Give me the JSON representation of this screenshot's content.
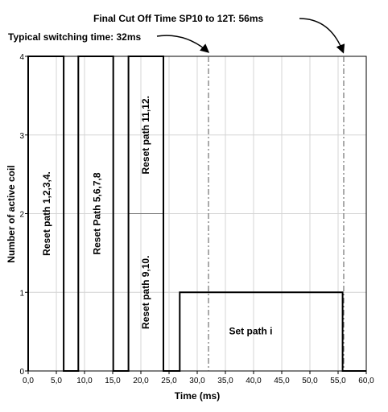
{
  "chart_data": {
    "type": "line",
    "xlabel": "Time (ms)",
    "ylabel": "Number of active coil",
    "xlim": [
      0,
      60
    ],
    "ylim": [
      0,
      4
    ],
    "grid": true,
    "x_tick_labels": [
      "0,0",
      "5,0",
      "10,0",
      "15,0",
      "20,0",
      "25,0",
      "30,0",
      "35,0",
      "40,0",
      "45,0",
      "50,0",
      "55,0",
      "60,0"
    ],
    "y_tick_labels": [
      "0",
      "1",
      "2",
      "3",
      "4"
    ],
    "series": [
      {
        "x": [
          0.0,
          0.0,
          6.3,
          6.3,
          8.9,
          8.9,
          15.1,
          15.1,
          17.8,
          17.8,
          24.0,
          24.0,
          26.9,
          26.9,
          55.8,
          55.8,
          60.0
        ],
        "y": [
          0,
          4,
          4,
          0,
          0,
          4,
          4,
          0,
          0,
          4,
          4,
          0,
          0,
          1,
          1,
          0,
          0
        ]
      }
    ],
    "divider": {
      "x": [
        17.8,
        24.0
      ],
      "y": 2
    },
    "markers": [
      {
        "x": 32,
        "label": "Typical switching time: 32ms"
      },
      {
        "x": 56,
        "label": "Final Cut Off Time  SP10  to 12T: 56ms"
      }
    ],
    "region_labels": [
      {
        "text": "Reset path 1,2,3,4.",
        "x": 3.4,
        "y": 2.0
      },
      {
        "text": "Reset Path 5,6,7,8",
        "x": 12.3,
        "y": 2.0
      },
      {
        "text": "Reset path 11,12.",
        "x": 21.0,
        "y": 3.0
      },
      {
        "text": "Reset path 9,10.",
        "x": 21.0,
        "y": 1.0
      },
      {
        "text": "Set path i",
        "x": 39.5,
        "y": 0.5
      }
    ]
  }
}
